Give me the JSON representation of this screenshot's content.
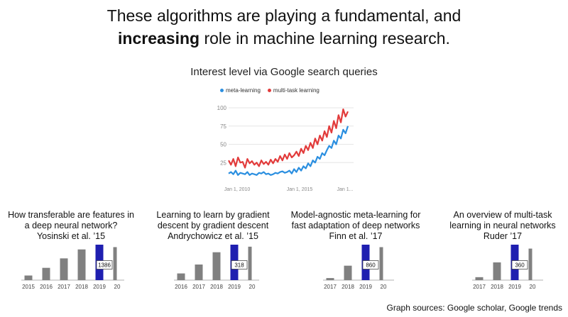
{
  "headline": {
    "line1": "These algorithms are playing a fundamental, and",
    "bold": "increasing",
    "line2_rest": " role in machine learning research."
  },
  "trends": {
    "title": "Interest level via Google search queries",
    "legend": [
      {
        "label": "meta-learning",
        "color": "#2b8fe0"
      },
      {
        "label": "multi-task learning",
        "color": "#e23b3b"
      }
    ]
  },
  "papers": [
    {
      "title_l1": "How transferable are features in",
      "title_l2": "a deep neural network?",
      "cite": "Yosinski et al. ’15"
    },
    {
      "title_l1": "Learning to learn by gradient",
      "title_l2": "descent by gradient descent",
      "cite": "Andrychowicz et al. ’15"
    },
    {
      "title_l1": "Model-agnostic meta-learning for",
      "title_l2": "fast adaptation of deep networks",
      "cite": "Finn et al. ’17"
    },
    {
      "title_l1": "An overview of multi-task",
      "title_l2": "learning in neural networks",
      "cite": "Ruder ’17"
    }
  ],
  "footer": "Graph sources: Google scholar, Google trends",
  "chart_data": [
    {
      "type": "line",
      "title": "Interest level via Google search queries",
      "x_ticks": [
        "Jan 1, 2010",
        "Jan 1, 2015",
        "Jan 1..."
      ],
      "y_ticks": [
        25,
        50,
        75,
        100
      ],
      "ylim": [
        0,
        100
      ],
      "series": [
        {
          "name": "meta-learning",
          "color": "#2b8fe0",
          "values": [
            10,
            12,
            9,
            14,
            8,
            11,
            10,
            9,
            12,
            8,
            10,
            9,
            8,
            11,
            10,
            12,
            9,
            10,
            8,
            9,
            11,
            10,
            12,
            13,
            11,
            12,
            14,
            10,
            16,
            12,
            18,
            14,
            20,
            17,
            24,
            20,
            28,
            25,
            33,
            30,
            38,
            35,
            42,
            48,
            45,
            55,
            50,
            62,
            58,
            70,
            65,
            75
          ]
        },
        {
          "name": "multi-task learning",
          "color": "#e23b3b",
          "values": [
            28,
            22,
            30,
            20,
            32,
            25,
            26,
            18,
            30,
            24,
            27,
            22,
            25,
            20,
            28,
            23,
            26,
            22,
            29,
            24,
            30,
            26,
            34,
            28,
            36,
            30,
            38,
            32,
            35,
            40,
            34,
            44,
            38,
            48,
            42,
            52,
            45,
            58,
            50,
            62,
            55,
            68,
            60,
            75,
            66,
            82,
            72,
            90,
            80,
            98,
            88,
            95
          ]
        }
      ]
    },
    {
      "type": "bar",
      "categories": [
        "2015",
        "2016",
        "2017",
        "2018",
        "2019",
        "20"
      ],
      "values": [
        180,
        480,
        850,
        1200,
        1386,
        1290
      ],
      "value_label": "1386",
      "highlight": "2019"
    },
    {
      "type": "bar",
      "categories": [
        "2016",
        "2017",
        "2018",
        "2019",
        "20"
      ],
      "values": [
        60,
        140,
        250,
        318,
        300
      ],
      "value_label": "318",
      "highlight": "2019"
    },
    {
      "type": "bar",
      "categories": [
        "2017",
        "2018",
        "2019",
        "20"
      ],
      "values": [
        50,
        350,
        860,
        800
      ],
      "value_label": "860",
      "highlight": "2019"
    },
    {
      "type": "bar",
      "categories": [
        "2017",
        "2018",
        "2019",
        "20"
      ],
      "values": [
        30,
        180,
        360,
        320
      ],
      "value_label": "360",
      "highlight": "2019"
    }
  ]
}
